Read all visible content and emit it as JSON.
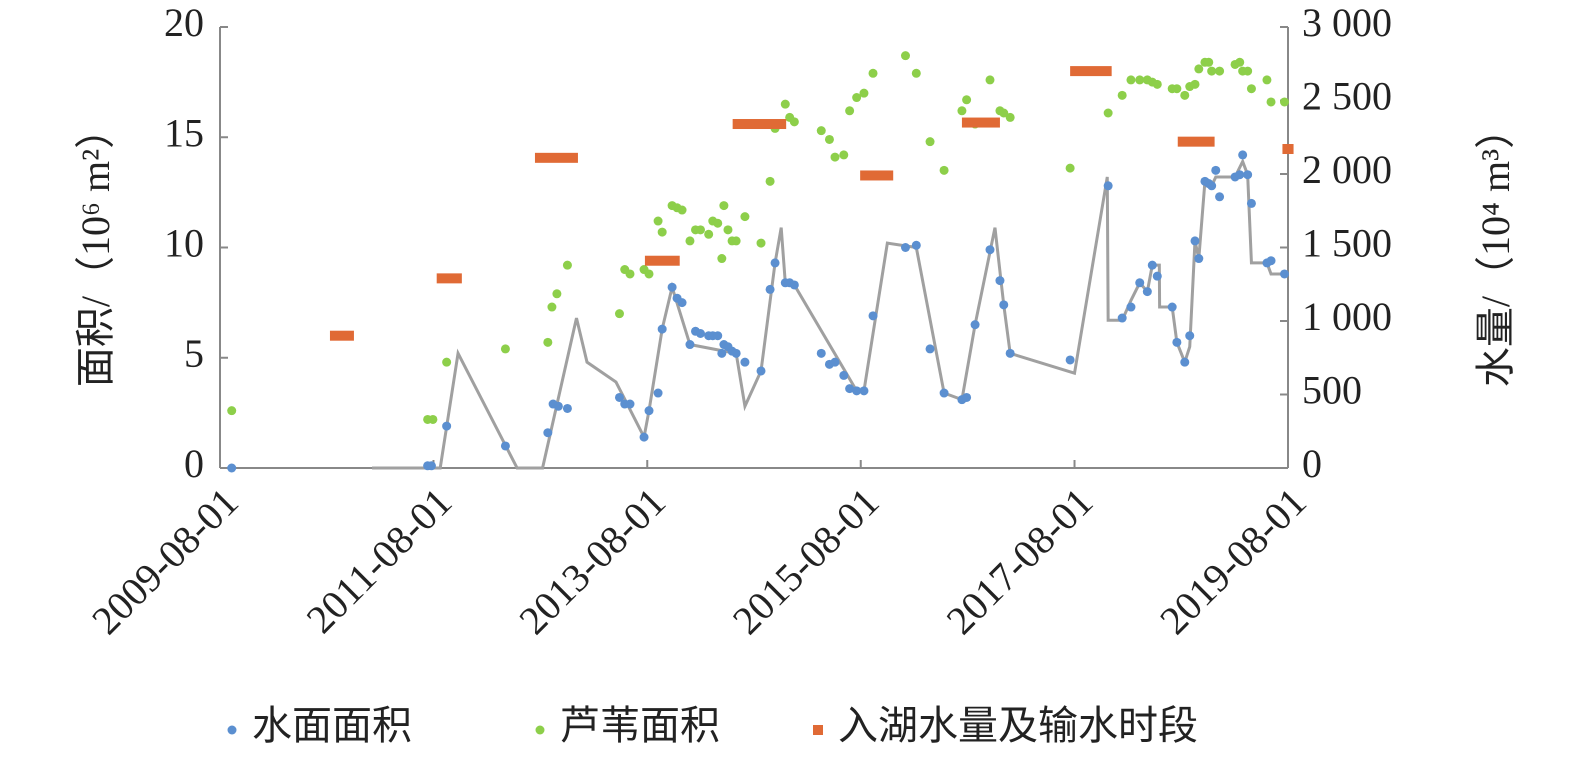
{
  "chart_data": {
    "type": "scatter",
    "y_label": "面积/（10⁶ m²）",
    "y2_label": "水量/（10⁴ m³）",
    "xlim": [
      "2009-08-01",
      "2019-08-01"
    ],
    "xticks": [
      "2009-08-01",
      "2011-08-01",
      "2013-08-01",
      "2015-08-01",
      "2017-08-01",
      "2019-08-01"
    ],
    "ylim": [
      0,
      20
    ],
    "yticks": [
      0,
      5,
      10,
      15,
      20
    ],
    "y2lim": [
      0,
      3000
    ],
    "y2ticks": [
      0,
      500,
      {
        "value": 1000,
        "label": "1 000"
      },
      {
        "value": 1500,
        "label": "1 500"
      },
      {
        "value": 2000,
        "label": "2 000"
      },
      {
        "value": 2500,
        "label": "2 500"
      },
      {
        "value": 3000,
        "label": "3 000"
      }
    ],
    "series": [
      {
        "type": "line",
        "color": "#a0a0a0",
        "x": [
          "2011-01-03",
          "2011-08-24",
          "2011-10-24",
          "2012-05-13",
          "2012-08-08",
          "2012-12-02",
          "2013-01-07",
          "2013-04-16",
          "2013-05-13",
          "2013-07-21",
          "2013-08-07",
          "2013-09-21",
          "2013-10-25",
          "2013-12-25",
          "2014-06-01",
          "2014-07-01",
          "2014-08-25",
          "2014-10-12",
          "2014-11-02",
          "2014-11-16",
          "2014-12-17",
          "2015-07-18",
          "2015-08-12",
          "2015-10-31",
          "2016-02-07",
          "2016-05-12",
          "2016-07-12",
          "2016-08-26",
          "2016-11-02",
          "2016-12-02",
          "2016-12-24",
          "2017-08-01",
          "2017-11-21",
          "2017-11-24",
          "2018-01-11",
          "2018-02-10",
          "2018-03-12",
          "2018-04-07",
          "2018-04-24",
          "2018-05-18",
          "2018-05-19",
          "2018-07-01",
          "2018-07-17",
          "2018-08-13",
          "2018-08-30",
          "2018-09-17",
          "2018-09-30",
          "2018-10-21",
          "2018-11-13",
          "2018-11-27",
          "2019-02-01",
          "2019-02-27",
          "2019-03-16",
          "2019-03-29",
          "2019-05-21",
          "2019-06-04",
          "2019-08-01"
        ],
        "values": [
          0,
          0,
          5.2,
          0,
          0,
          6.8,
          4.8,
          3.9,
          3.2,
          1.4,
          2.6,
          6.3,
          8.2,
          5.6,
          5.2,
          2.8,
          4.4,
          9.3,
          10.9,
          8.4,
          8.3,
          3.5,
          3.5,
          10.2,
          10.0,
          3.4,
          3.1,
          6.5,
          10.9,
          7.4,
          5.2,
          4.3,
          13.2,
          6.7,
          6.7,
          7.6,
          8.4,
          8.0,
          9.2,
          9.2,
          7.3,
          7.3,
          5.7,
          4.8,
          5.5,
          10.3,
          9.5,
          13.0,
          12.8,
          13.2,
          13.2,
          13.9,
          13.3,
          9.3,
          9.3,
          8.8,
          8.8
        ]
      },
      {
        "name": "水面面积",
        "type": "scatter",
        "color": "#5b8fd0",
        "x": [
          "2009-09-10",
          "2011-07-12",
          "2011-07-25",
          "2011-09-15",
          "2012-04-03",
          "2012-08-26",
          "2012-09-13",
          "2012-10-01",
          "2012-11-01",
          "2013-04-28",
          "2013-05-16",
          "2013-06-03",
          "2013-07-21",
          "2013-08-07",
          "2013-09-07",
          "2013-09-21",
          "2013-10-25",
          "2013-11-11",
          "2013-11-28",
          "2013-12-25",
          "2014-01-13",
          "2014-01-30",
          "2014-02-27",
          "2014-03-13",
          "2014-03-30",
          "2014-04-13",
          "2014-04-20",
          "2014-05-04",
          "2014-05-18",
          "2014-06-01",
          "2014-07-01",
          "2014-08-25",
          "2014-09-25",
          "2014-10-12",
          "2014-11-16",
          "2014-12-01",
          "2014-12-17",
          "2015-03-19",
          "2015-04-16",
          "2015-05-05",
          "2015-06-04",
          "2015-06-24",
          "2015-07-18",
          "2015-08-12",
          "2015-09-12",
          "2016-01-01",
          "2016-02-07",
          "2016-03-25",
          "2016-05-12",
          "2016-07-12",
          "2016-07-28",
          "2016-08-26",
          "2016-10-16",
          "2016-11-19",
          "2016-12-02",
          "2016-12-24",
          "2017-07-17",
          "2017-11-24",
          "2018-01-11",
          "2018-02-10",
          "2018-03-12",
          "2018-04-07",
          "2018-04-24",
          "2018-05-11",
          "2018-07-01",
          "2018-07-17",
          "2018-08-13",
          "2018-08-30",
          "2018-09-17",
          "2018-09-30",
          "2018-10-21",
          "2018-11-03",
          "2018-11-13",
          "2018-11-27",
          "2018-12-10",
          "2019-02-01",
          "2019-02-17",
          "2019-02-27",
          "2019-03-16",
          "2019-03-29",
          "2019-05-21",
          "2019-06-04",
          "2019-07-20"
        ],
        "values": [
          0,
          0.1,
          0.1,
          1.9,
          1.0,
          1.6,
          2.9,
          2.8,
          2.7,
          3.2,
          2.9,
          2.9,
          1.4,
          2.6,
          3.4,
          6.3,
          8.2,
          7.7,
          7.5,
          5.6,
          6.2,
          6.1,
          6.0,
          6.0,
          6.0,
          5.2,
          5.6,
          5.5,
          5.3,
          5.2,
          4.8,
          4.4,
          8.1,
          9.3,
          8.4,
          8.4,
          8.3,
          5.2,
          4.7,
          4.8,
          4.2,
          3.6,
          3.5,
          3.5,
          6.9,
          10.0,
          10.1,
          5.4,
          3.4,
          3.1,
          3.2,
          6.5,
          9.9,
          8.5,
          7.4,
          5.2,
          4.9,
          12.8,
          6.8,
          7.3,
          8.4,
          8.0,
          9.2,
          8.7,
          7.3,
          5.7,
          4.8,
          6.0,
          10.3,
          9.5,
          13.0,
          12.9,
          12.8,
          13.5,
          12.3,
          13.2,
          13.3,
          14.2,
          13.3,
          12.0,
          9.3,
          9.4,
          8.8
        ]
      },
      {
        "name": "芦苇面积",
        "type": "scatter",
        "color": "#8dcf4a",
        "x": [
          "2009-09-10",
          "2011-07-12",
          "2011-07-30",
          "2011-09-15",
          "2012-04-03",
          "2012-08-26",
          "2012-09-09",
          "2012-09-26",
          "2012-11-01",
          "2013-04-28",
          "2013-05-16",
          "2013-06-03",
          "2013-07-21",
          "2013-08-07",
          "2013-09-07",
          "2013-09-21",
          "2013-10-25",
          "2013-11-11",
          "2013-11-28",
          "2013-12-25",
          "2014-01-13",
          "2014-01-30",
          "2014-02-27",
          "2014-03-13",
          "2014-03-30",
          "2014-04-13",
          "2014-04-20",
          "2014-05-04",
          "2014-05-18",
          "2014-06-01",
          "2014-07-01",
          "2014-08-25",
          "2014-09-25",
          "2014-10-12",
          "2014-11-16",
          "2014-12-01",
          "2014-12-17",
          "2015-03-19",
          "2015-04-16",
          "2015-05-05",
          "2015-06-04",
          "2015-06-24",
          "2015-07-18",
          "2015-08-12",
          "2015-09-12",
          "2016-01-01",
          "2016-02-07",
          "2016-03-25",
          "2016-05-12",
          "2016-07-12",
          "2016-07-28",
          "2016-08-26",
          "2016-10-16",
          "2016-11-19",
          "2016-12-02",
          "2016-12-24",
          "2017-07-17",
          "2017-11-24",
          "2018-01-11",
          "2018-02-10",
          "2018-03-12",
          "2018-04-07",
          "2018-04-24",
          "2018-05-11",
          "2018-07-01",
          "2018-07-17",
          "2018-08-13",
          "2018-08-30",
          "2018-09-17",
          "2018-09-30",
          "2018-10-21",
          "2018-11-03",
          "2018-11-13",
          "2018-12-10",
          "2019-02-01",
          "2019-02-17",
          "2019-02-27",
          "2019-03-16",
          "2019-03-29",
          "2019-05-21",
          "2019-06-04",
          "2019-07-20"
        ],
        "values": [
          2.6,
          2.2,
          2.2,
          4.8,
          5.4,
          5.7,
          7.3,
          7.9,
          9.2,
          7.0,
          9.0,
          8.8,
          9.0,
          8.8,
          11.2,
          10.7,
          11.9,
          11.8,
          11.7,
          10.3,
          10.8,
          10.8,
          10.6,
          11.2,
          11.1,
          9.5,
          11.9,
          10.8,
          10.3,
          10.3,
          11.4,
          10.2,
          13.0,
          15.4,
          16.5,
          15.9,
          15.7,
          15.3,
          14.9,
          14.1,
          14.2,
          16.2,
          16.8,
          17.0,
          17.9,
          18.7,
          17.9,
          14.8,
          13.5,
          16.2,
          16.7,
          15.6,
          17.6,
          16.2,
          16.1,
          15.9,
          13.6,
          16.1,
          16.9,
          17.6,
          17.6,
          17.6,
          17.5,
          17.4,
          17.2,
          17.2,
          16.9,
          17.3,
          17.4,
          18.1,
          18.4,
          18.4,
          18.0,
          18.0,
          18.3,
          18.4,
          18.0,
          18.0,
          17.2,
          17.6,
          16.6,
          16.6
        ]
      },
      {
        "name": "入湖水量及输水时段",
        "type": "segment",
        "axis": "y2",
        "color": "#e06a35",
        "x_start": [
          "2010-08-12",
          "2011-08-12",
          "2012-07-13",
          "2013-07-24",
          "2014-05-20",
          "2015-07-30",
          "2016-07-12",
          "2017-07-17",
          "2018-07-20",
          "2019-07-13"
        ],
        "x_end": [
          "2010-11-02",
          "2011-11-06",
          "2012-12-07",
          "2013-11-20",
          "2014-11-19",
          "2015-11-20",
          "2016-11-19",
          "2017-12-06",
          "2018-11-23",
          "2019-08-20"
        ],
        "values": [
          900,
          1290,
          2110,
          1410,
          2340,
          1990,
          2350,
          2700,
          2220,
          2170
        ]
      }
    ]
  }
}
